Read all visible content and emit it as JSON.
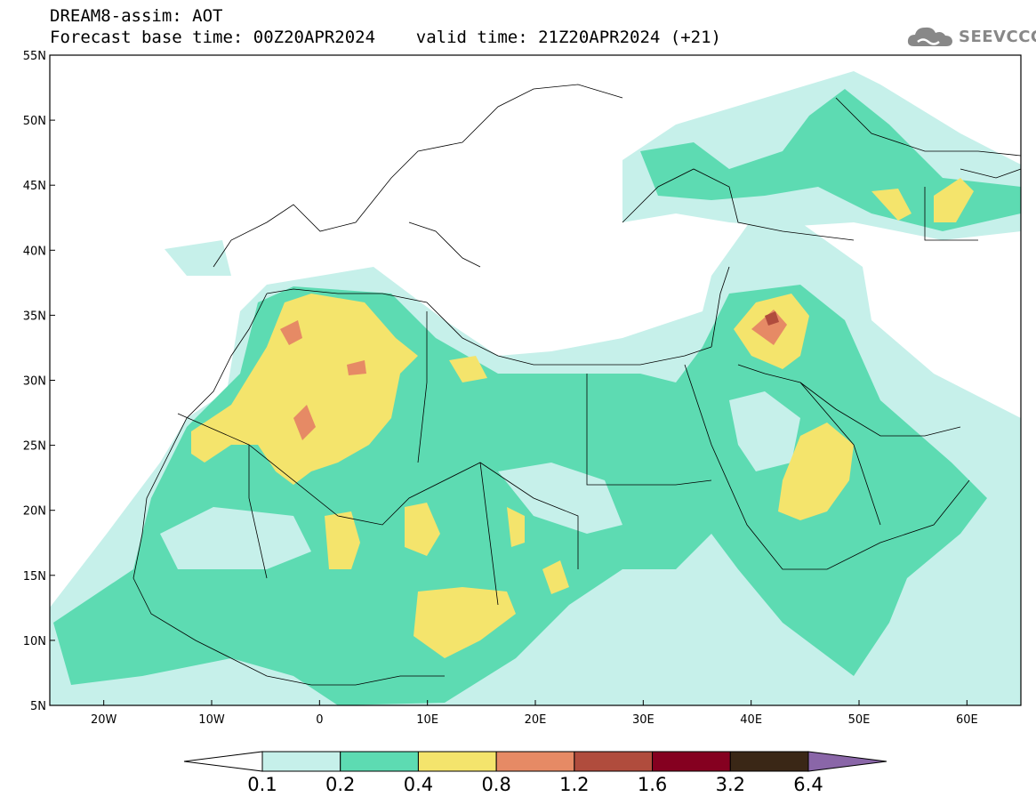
{
  "title": {
    "line1": "DREAM8-assim: AOT",
    "line2": "Forecast base time: 00Z20APR2024    valid time: 21Z20APR2024 (+21)"
  },
  "logo": {
    "text": "SEEVCCC",
    "icon": "cloud-icon"
  },
  "map": {
    "lat_labels": [
      "55N",
      "50N",
      "45N",
      "40N",
      "35N",
      "30N",
      "25N",
      "20N",
      "15N",
      "10N",
      "5N"
    ],
    "lon_labels": [
      "20W",
      "10W",
      "0",
      "10E",
      "20E",
      "30E",
      "40E",
      "50E",
      "60E"
    ],
    "extent": {
      "lon_min": -25,
      "lon_max": 65,
      "lat_min": 5,
      "lat_max": 55
    }
  },
  "colorbar": {
    "labels": [
      "0.1",
      "0.2",
      "0.4",
      "0.8",
      "1.2",
      "1.6",
      "3.2",
      "6.4"
    ],
    "colors": [
      "#ffffff",
      "#c6f0ea",
      "#5ddbb2",
      "#f4e46c",
      "#e68a65",
      "#b04c3d",
      "#850020",
      "#3a2716",
      "#8a66a8"
    ]
  }
}
